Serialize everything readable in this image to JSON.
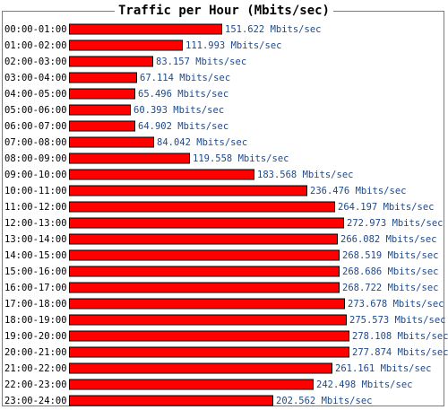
{
  "chart_data": {
    "type": "bar",
    "orientation": "horizontal",
    "title": "Traffic per Hour (Mbits/sec)",
    "unit": "Mbits/sec",
    "bar_color": "#ff0000",
    "value_color": "#1f4a8c",
    "categories": [
      "00:00-01:00",
      "01:00-02:00",
      "02:00-03:00",
      "03:00-04:00",
      "04:00-05:00",
      "05:00-06:00",
      "06:00-07:00",
      "07:00-08:00",
      "08:00-09:00",
      "09:00-10:00",
      "10:00-11:00",
      "11:00-12:00",
      "12:00-13:00",
      "13:00-14:00",
      "14:00-15:00",
      "15:00-16:00",
      "16:00-17:00",
      "17:00-18:00",
      "18:00-19:00",
      "19:00-20:00",
      "20:00-21:00",
      "21:00-22:00",
      "22:00-23:00",
      "23:00-24:00"
    ],
    "values": [
      151.622,
      111.993,
      83.157,
      67.114,
      65.496,
      60.393,
      64.902,
      84.042,
      119.558,
      183.568,
      236.476,
      264.197,
      272.973,
      266.082,
      268.519,
      268.686,
      268.722,
      273.678,
      275.573,
      278.108,
      277.874,
      261.161,
      242.498,
      202.562
    ],
    "value_labels": [
      "151.622 Mbits/sec",
      "111.993 Mbits/sec",
      "83.157 Mbits/sec",
      "67.114 Mbits/sec",
      "65.496 Mbits/sec",
      "60.393 Mbits/sec",
      "64.902 Mbits/sec",
      "84.042 Mbits/sec",
      "119.558 Mbits/sec",
      "183.568 Mbits/sec",
      "236.476 Mbits/sec",
      "264.197 Mbits/sec",
      "272.973 Mbits/sec",
      "266.082 Mbits/sec",
      "268.519 Mbits/sec",
      "268.686 Mbits/sec",
      "268.722 Mbits/sec",
      "273.678 Mbits/sec",
      "275.573 Mbits/sec",
      "278.108 Mbits/sec",
      "277.874 Mbits/sec",
      "261.161 Mbits/sec",
      "242.498 Mbits/sec",
      "202.562 Mbits/sec"
    ],
    "xlim": [
      0,
      278.108
    ],
    "grid": false,
    "legend": "none"
  }
}
